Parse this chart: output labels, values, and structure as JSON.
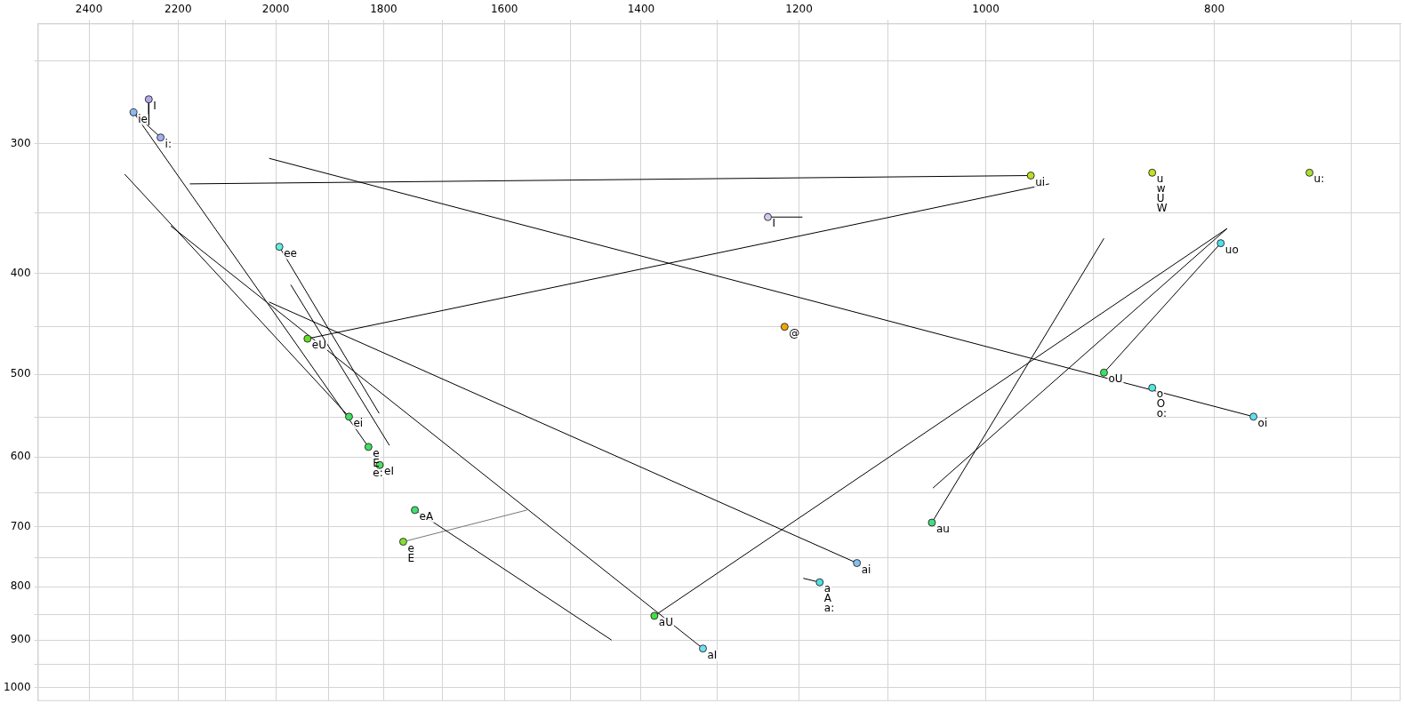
{
  "chart_data": {
    "type": "scatter",
    "log": "xy",
    "grid": true,
    "marker": "circle",
    "xlim": [
      2523,
      667
    ],
    "ylim": [
      1030,
      230
    ],
    "xticks": [
      {
        "value": 700,
        "label": null
      },
      800,
      {
        "value": 900,
        "label": null
      },
      1000,
      {
        "value": 1100,
        "label": null
      },
      1200,
      {
        "value": 1300,
        "label": null
      },
      1400,
      {
        "value": 1500,
        "label": null
      },
      1600,
      {
        "value": 1700,
        "label": null
      },
      1800,
      {
        "value": 1900,
        "label": null
      },
      2000,
      {
        "value": 2100,
        "label": null
      },
      2200,
      {
        "value": 2300,
        "label": null
      },
      2400
    ],
    "yticks": [
      {
        "value": 250,
        "label": null
      },
      300,
      {
        "value": 350,
        "label": null
      },
      400,
      {
        "value": 450,
        "label": null
      },
      500,
      {
        "value": 550,
        "label": null
      },
      600,
      {
        "value": 650,
        "label": null
      },
      700,
      {
        "value": 750,
        "label": null
      },
      800,
      {
        "value": 850,
        "label": null
      },
      900,
      {
        "value": 950,
        "label": null
      },
      1000
    ],
    "series": [
      {
        "type": "line",
        "marker": "none",
        "color": "#000000",
        "x": [
          2264,
          2264
        ],
        "values": [
          272,
          288
        ]
      },
      {
        "type": "line",
        "marker": "none",
        "color": "#000000",
        "x": [
          2298,
          2238
        ],
        "values": [
          280,
          296
        ]
      },
      {
        "type": "line",
        "marker": "none",
        "color": "#000000",
        "x": [
          2298,
          1827
        ],
        "values": [
          280,
          587
        ]
      },
      {
        "type": "line",
        "marker": "none",
        "color": "#000000",
        "x": [
          2175,
          957
        ],
        "values": [
          328,
          322
        ]
      },
      {
        "type": "line",
        "marker": "none",
        "color": "#000000",
        "x": [
          2013,
          770
        ],
        "values": [
          310,
          549
        ]
      },
      {
        "type": "line",
        "marker": "none",
        "color": "#000000",
        "x": [
          2318,
          1862
        ],
        "values": [
          321,
          549
        ]
      },
      {
        "type": "line",
        "marker": "none",
        "color": "#000000",
        "x": [
          2216,
          1318
        ],
        "values": [
          360,
          917
        ]
      },
      {
        "type": "line",
        "marker": "none",
        "color": "#000000",
        "x": [
          2013,
          1134
        ],
        "values": [
          426,
          759
        ]
      },
      {
        "type": "line",
        "marker": "none",
        "color": "#000000",
        "x": [
          1971,
          1790
        ],
        "values": [
          410,
          585
        ]
      },
      {
        "type": "line",
        "marker": "none",
        "color": "#000000",
        "x": [
          1993,
          1808
        ],
        "values": [
          377,
          545
        ]
      },
      {
        "type": "line",
        "marker": "none",
        "color": "#000000",
        "x": [
          1939,
          940
        ],
        "values": [
          462,
          328
        ]
      },
      {
        "type": "line",
        "marker": "none",
        "color": "#000000",
        "x": [
          1382,
          790
        ],
        "values": [
          853,
          362
        ]
      },
      {
        "type": "line",
        "marker": "none",
        "color": "#000000",
        "x": [
          1053,
          790
        ],
        "values": [
          643,
          362
        ]
      },
      {
        "type": "line",
        "marker": "none",
        "color": "#000000",
        "x": [
          891,
          795
        ],
        "values": [
          498,
          374
        ]
      },
      {
        "type": "line",
        "marker": "none",
        "color": "#000000",
        "x": [
          1054,
          891
        ],
        "values": [
          694,
          370
        ]
      },
      {
        "type": "line",
        "marker": "none",
        "color": "#000000",
        "x": [
          1237,
          1196
        ],
        "values": [
          353,
          353
        ]
      },
      {
        "type": "line",
        "marker": "none",
        "color": "#000000",
        "x": [
          1176,
          1195
        ],
        "values": [
          792,
          785
        ]
      },
      {
        "type": "line",
        "marker": "none",
        "color": "#000000",
        "x": [
          1746,
          1441
        ],
        "values": [
          675,
          900
        ]
      },
      {
        "type": "line",
        "marker": "none",
        "color": "#777777",
        "x": [
          1766,
          1565
        ],
        "values": [
          724,
          675
        ]
      },
      {
        "type": "scatter",
        "x": [
          2264,
          2298,
          2238,
          1993,
          957,
          850,
          729,
          1237,
          1217,
          795,
          891,
          850,
          770,
          1054,
          1134,
          1176,
          1939,
          1862,
          1827,
          1807,
          1746,
          1766,
          1382,
          1318
        ],
        "values": [
          272,
          280,
          296,
          377,
          322,
          320,
          320,
          353,
          450,
          374,
          498,
          515,
          549,
          694,
          759,
          792,
          462,
          549,
          587,
          611,
          675,
          724,
          853,
          917
        ],
        "colors": [
          "#b4a8ec",
          "#8cb8f0",
          "#a0b0f0",
          "#60f0e0",
          "#b8e020",
          "#c4e020",
          "#a8e030",
          "#d8c8f0",
          "#f0a800",
          "#50e0f0",
          "#40e060",
          "#50e8e0",
          "#60e0f0",
          "#40e080",
          "#80c0f0",
          "#50e0e0",
          "#60e020",
          "#40e060",
          "#40e060",
          "#50e060",
          "#40e070",
          "#80e030",
          "#40e040",
          "#70e0f0"
        ]
      }
    ],
    "annotations": [
      {
        "text": "I",
        "x": 2264,
        "y": 272
      },
      {
        "text": "ie",
        "x": 2298,
        "y": 280
      },
      {
        "text": "i:",
        "x": 2238,
        "y": 296
      },
      {
        "text": "ee",
        "x": 1993,
        "y": 377
      },
      {
        "text": "ui",
        "x": 957,
        "y": 322
      },
      {
        "text": "u",
        "x": 850,
        "y": 320
      },
      {
        "text": "w",
        "x": 850,
        "y": 320
      },
      {
        "text": "U",
        "x": 850,
        "y": 320
      },
      {
        "text": "W",
        "x": 850,
        "y": 320
      },
      {
        "text": "u:",
        "x": 729,
        "y": 320
      },
      {
        "text": "I",
        "x": 1237,
        "y": 353
      },
      {
        "text": "@",
        "x": 1217,
        "y": 450
      },
      {
        "text": "uo",
        "x": 795,
        "y": 374
      },
      {
        "text": "oU",
        "x": 891,
        "y": 498
      },
      {
        "text": "o",
        "x": 850,
        "y": 515
      },
      {
        "text": "O",
        "x": 850,
        "y": 515
      },
      {
        "text": "o:",
        "x": 850,
        "y": 515
      },
      {
        "text": "oi",
        "x": 770,
        "y": 549
      },
      {
        "text": "au",
        "x": 1054,
        "y": 694
      },
      {
        "text": "ai",
        "x": 1134,
        "y": 759
      },
      {
        "text": "a",
        "x": 1176,
        "y": 792
      },
      {
        "text": "A",
        "x": 1176,
        "y": 792
      },
      {
        "text": "a:",
        "x": 1176,
        "y": 792
      },
      {
        "text": "eU",
        "x": 1939,
        "y": 462
      },
      {
        "text": "ei",
        "x": 1862,
        "y": 549
      },
      {
        "text": "e",
        "x": 1827,
        "y": 587
      },
      {
        "text": "E",
        "x": 1827,
        "y": 587
      },
      {
        "text": "e:",
        "x": 1827,
        "y": 587
      },
      {
        "text": "eI",
        "x": 1807,
        "y": 611
      },
      {
        "text": "eA",
        "x": 1746,
        "y": 675
      },
      {
        "text": "e",
        "x": 1766,
        "y": 724
      },
      {
        "text": "E",
        "x": 1766,
        "y": 724
      },
      {
        "text": "aU",
        "x": 1382,
        "y": 853
      },
      {
        "text": "aI",
        "x": 1318,
        "y": 917
      }
    ]
  }
}
